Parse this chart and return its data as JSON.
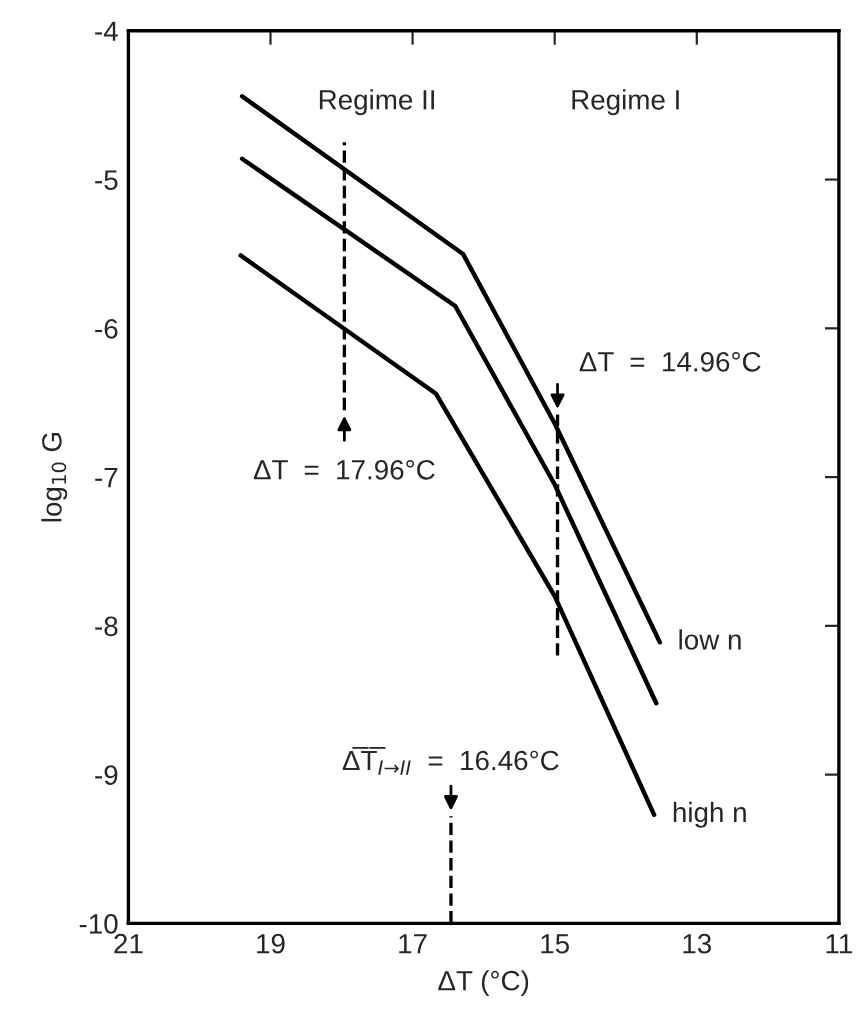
{
  "chart_data": {
    "type": "line",
    "xlabel": "ΔT (°C)",
    "ylabel": "log$_{10}$ G",
    "xlim": [
      21,
      11
    ],
    "xticks": [
      21,
      19,
      17,
      15,
      13,
      11
    ],
    "ylim": [
      -10,
      -4
    ],
    "yticks": [
      -10,
      -9,
      -8,
      -7,
      -6,
      -5,
      -4
    ],
    "grid": false,
    "legend": false,
    "marker": "none",
    "line_style": "solid",
    "series": [
      {
        "name": "low n",
        "color": "#000000",
        "x": [
          19.4,
          16.29,
          15,
          13.52
        ],
        "values": [
          -4.44,
          -5.5,
          -6.64,
          -8.11
        ]
      },
      {
        "color": "#000000",
        "x": [
          19.4,
          16.4,
          15,
          13.57
        ],
        "values": [
          -4.86,
          -5.85,
          -7.05,
          -8.52
        ]
      },
      {
        "name": "high n",
        "color": "#000000",
        "x": [
          19.42,
          16.67,
          15,
          13.6
        ],
        "values": [
          -5.51,
          -6.44,
          -7.8,
          -9.27
        ]
      }
    ],
    "annotations": [
      "Regime II",
      "Regime I"
    ],
    "ref_lines": [
      {
        "axis": "x",
        "value": 17.96,
        "label": "ΔT  =  17.96°C",
        "line_style": "dashed",
        "color": "#000000"
      },
      {
        "axis": "x",
        "value": 14.96,
        "label": "ΔT  =  14.96°C",
        "line_style": "dashed",
        "color": "#000000"
      },
      {
        "axis": "x",
        "value": 16.46,
        "label": "Δ̅T̅$_{I→II}$  =  16.46°C",
        "line_style": "dashed",
        "color": "#000000"
      }
    ]
  }
}
